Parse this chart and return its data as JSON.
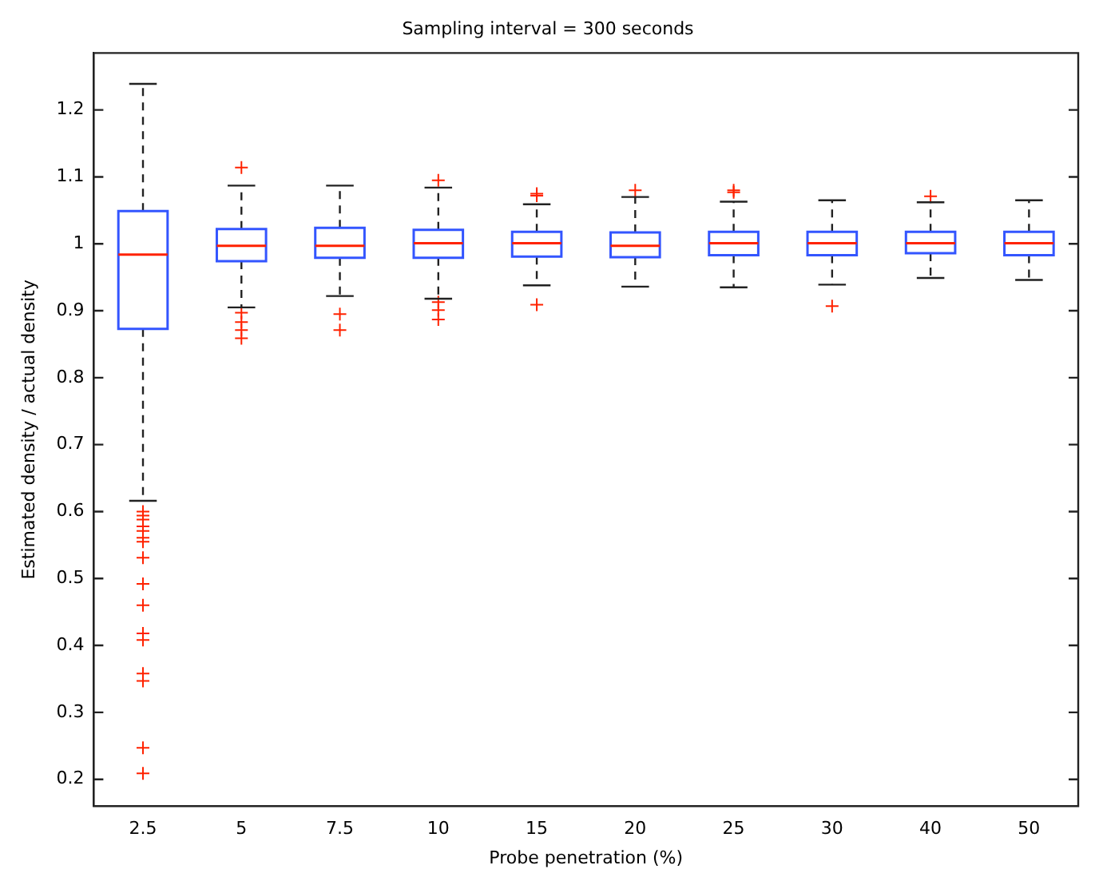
{
  "chart_data": {
    "type": "box",
    "title": "Sampling interval = 300 seconds",
    "xlabel": "Probe penetration (%)",
    "ylabel": "Estimated density / actual density",
    "categories": [
      "2.5",
      "5",
      "7.5",
      "10",
      "15",
      "20",
      "25",
      "30",
      "40",
      "50"
    ],
    "ylim": [
      0.16,
      1.285
    ],
    "yticks": [
      0.2,
      0.3,
      0.4,
      0.5,
      0.6,
      0.7,
      0.8,
      0.9,
      1,
      1.1,
      1.2
    ],
    "grid": false,
    "marker": "cross",
    "legend": false,
    "series": [
      {
        "color": "#3355ff",
        "boxes": [
          {
            "low": 0.616,
            "q1": 0.873,
            "median": 0.984,
            "q3": 1.049,
            "high": 1.239,
            "outliers": [
              0.6,
              0.594,
              0.588,
              0.578,
              0.571,
              0.561,
              0.555,
              0.531,
              0.492,
              0.46,
              0.418,
              0.408,
              0.358,
              0.347,
              0.247,
              0.209
            ]
          },
          {
            "low": 0.905,
            "q1": 0.974,
            "median": 0.997,
            "q3": 1.022,
            "high": 1.087,
            "outliers": [
              1.114,
              0.897,
              0.883,
              0.871,
              0.859
            ]
          },
          {
            "low": 0.922,
            "q1": 0.979,
            "median": 0.997,
            "q3": 1.024,
            "high": 1.087,
            "outliers": [
              0.895,
              0.871
            ]
          },
          {
            "low": 0.918,
            "q1": 0.979,
            "median": 1.001,
            "q3": 1.021,
            "high": 1.084,
            "outliers": [
              1.095,
              0.913,
              0.901,
              0.887
            ]
          },
          {
            "low": 0.938,
            "q1": 0.981,
            "median": 1.001,
            "q3": 1.018,
            "high": 1.059,
            "outliers": [
              1.075,
              1.072,
              0.909
            ]
          },
          {
            "low": 0.936,
            "q1": 0.98,
            "median": 0.997,
            "q3": 1.017,
            "high": 1.07,
            "outliers": [
              1.08
            ]
          },
          {
            "low": 0.935,
            "q1": 0.983,
            "median": 1.001,
            "q3": 1.018,
            "high": 1.063,
            "outliers": [
              1.08,
              1.077
            ]
          },
          {
            "low": 0.939,
            "q1": 0.983,
            "median": 1.001,
            "q3": 1.018,
            "high": 1.065,
            "outliers": [
              0.907
            ]
          },
          {
            "low": 0.949,
            "q1": 0.986,
            "median": 1.001,
            "q3": 1.018,
            "high": 1.062,
            "outliers": [
              1.071
            ]
          },
          {
            "low": 0.946,
            "q1": 0.983,
            "median": 1.001,
            "q3": 1.018,
            "high": 1.065
          }
        ]
      }
    ]
  }
}
